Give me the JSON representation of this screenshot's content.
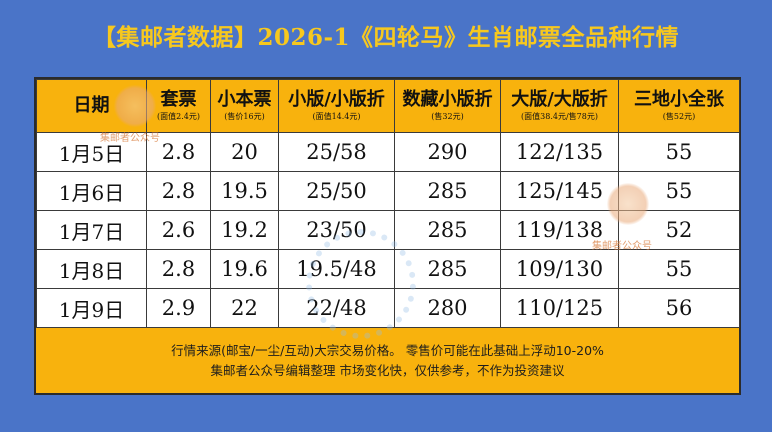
{
  "title": "【集邮者数据】2026-1《四轮马》生肖邮票全品种行情",
  "columns": [
    {
      "name": "日期",
      "note": ""
    },
    {
      "name": "套票",
      "note": "(面值2.4元)"
    },
    {
      "name": "小本票",
      "note": "(售价16元)"
    },
    {
      "name": "小版/小版折",
      "note": "(面值14.4元)"
    },
    {
      "name": "数藏小版折",
      "note": "(售32元)"
    },
    {
      "name": "大版/大版折",
      "note": "(面值38.4元/售78元)"
    },
    {
      "name": "三地小全张",
      "note": "(售52元)"
    }
  ],
  "rows": [
    [
      "1月5日",
      "2.8",
      "20",
      "25/58",
      "290",
      "122/135",
      "55"
    ],
    [
      "1月6日",
      "2.8",
      "19.5",
      "25/50",
      "285",
      "125/145",
      "55"
    ],
    [
      "1月7日",
      "2.6",
      "19.2",
      "23/50",
      "285",
      "119/138",
      "52"
    ],
    [
      "1月8日",
      "2.8",
      "19.6",
      "19.5/48",
      "285",
      "109/130",
      "55"
    ],
    [
      "1月9日",
      "2.9",
      "22",
      "22/48",
      "280",
      "110/125",
      "56"
    ]
  ],
  "footer": {
    "line1": "行情来源(邮宝/一尘/互动)大宗交易价格。 零售价可能在此基础上浮动10-20%",
    "line2": "集邮者公众号编辑整理 市场变化快，仅供参考，不作为投资建议"
  },
  "watermark": {
    "text": "集邮者公众号"
  }
}
